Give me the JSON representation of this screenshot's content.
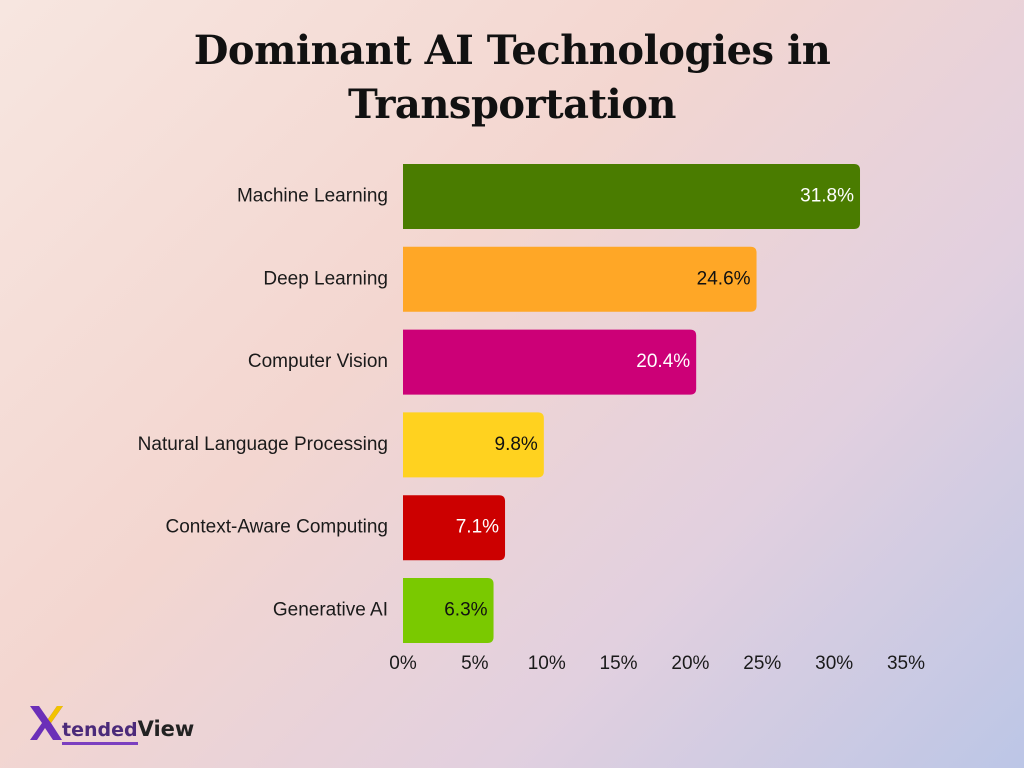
{
  "chart_data": {
    "type": "bar",
    "orientation": "horizontal",
    "title": "Dominant AI Technologies in Transportation",
    "title_lines": [
      "Dominant AI Technologies in",
      "Transportation"
    ],
    "categories": [
      "Machine Learning",
      "Deep Learning",
      "Computer Vision",
      "Natural Language Processing",
      "Context-Aware Computing",
      "Generative AI"
    ],
    "values": [
      31.8,
      24.6,
      20.4,
      9.8,
      7.1,
      6.3
    ],
    "data_labels": [
      "31.8%",
      "24.6%",
      "20.4%",
      "9.8%",
      "7.1%",
      "6.3%"
    ],
    "colors": [
      "#4a7c00",
      "#ffa726",
      "#cc0077",
      "#ffd21f",
      "#cc0000",
      "#7ac900"
    ],
    "label_colors": [
      "#ffffff",
      "#111111",
      "#ffffff",
      "#111111",
      "#ffffff",
      "#111111"
    ],
    "xlim": [
      0,
      35
    ],
    "xticks": [
      "0%",
      "5%",
      "10%",
      "15%",
      "20%",
      "25%",
      "30%",
      "35%"
    ],
    "xlabel": "",
    "ylabel": "",
    "grid": false,
    "legend": "none"
  },
  "logo": {
    "brand_first": "tended",
    "brand_second": "View"
  }
}
